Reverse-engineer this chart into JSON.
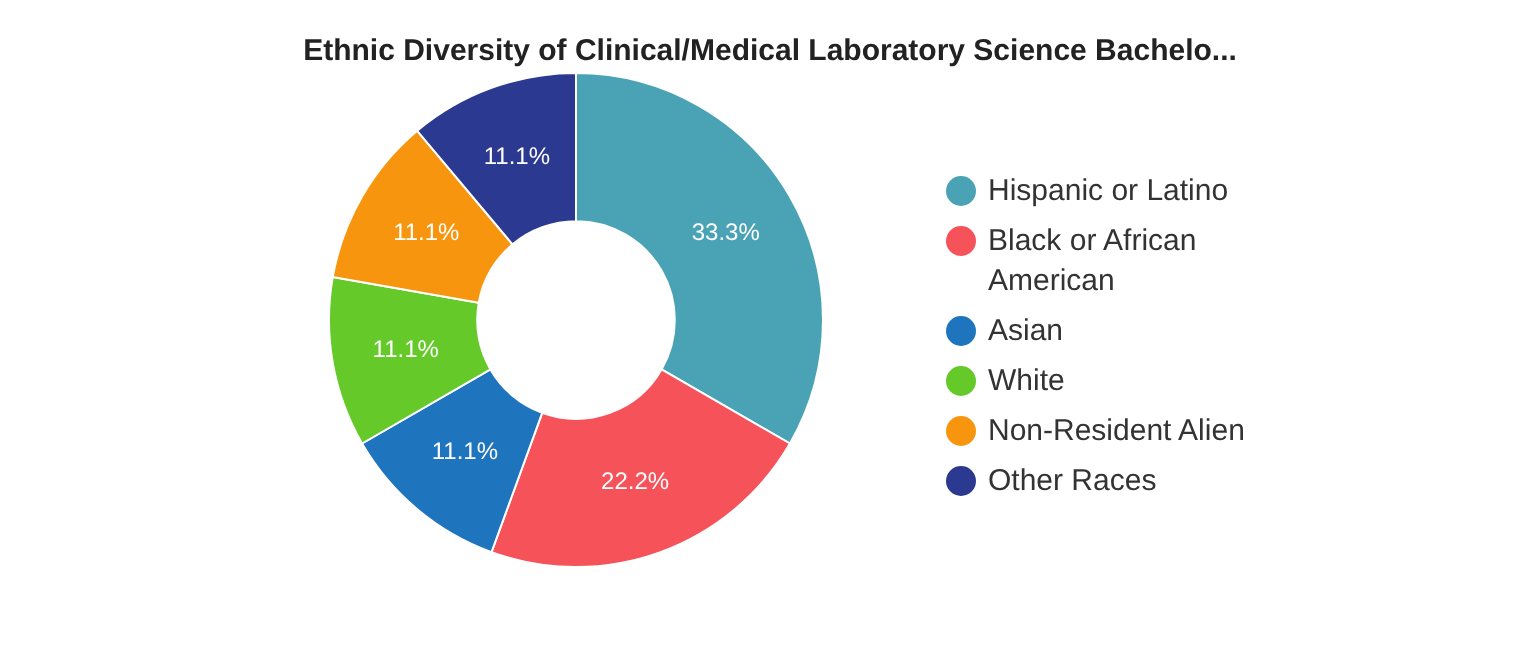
{
  "chart_data": {
    "type": "donut",
    "title": "Ethnic Diversity of Clinical/Medical Laboratory Science Bachelo...",
    "categories": [
      "Hispanic or Latino",
      "Black or African American",
      "Asian",
      "White",
      "Non-Resident Alien",
      "Other Races"
    ],
    "values": [
      33.3,
      22.2,
      11.1,
      11.1,
      11.1,
      11.1
    ],
    "colors": [
      "#4aa3b5",
      "#f6525a",
      "#1f74be",
      "#65c92a",
      "#f7950e",
      "#2b3990"
    ],
    "value_labels": [
      "33.3%",
      "22.2%",
      "11.1%",
      "11.1%",
      "11.1%",
      "11.1%"
    ],
    "legend": "right"
  }
}
